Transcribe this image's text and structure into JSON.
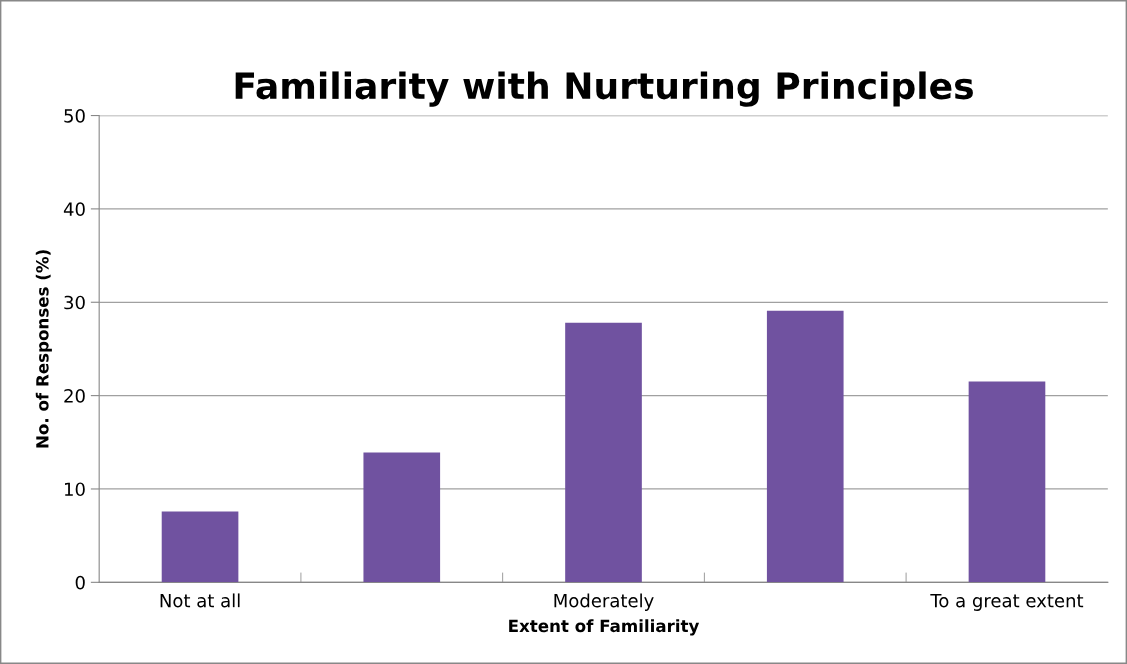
{
  "chart_data": {
    "type": "bar",
    "title": "Familiarity with Nurturing Principles",
    "xlabel": "Extent of Familiarity",
    "ylabel": "No. of Responses (%)",
    "categories": [
      "Not at all",
      null,
      "Moderately",
      null,
      "To a great extent"
    ],
    "values": [
      7.6,
      13.9,
      27.8,
      29.1,
      21.5
    ],
    "color": "#7052a0",
    "ylim": [
      0,
      50
    ],
    "yticks": [
      0,
      10,
      20,
      30,
      40,
      50
    ],
    "grid": "y"
  }
}
